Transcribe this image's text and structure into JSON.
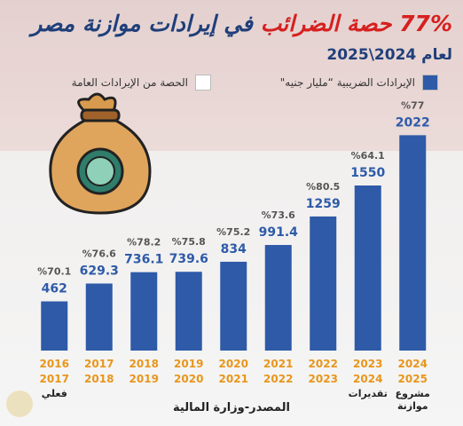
{
  "chart_data": {
    "type": "bar",
    "title": {
      "highlight": "77% حصة الضرائب",
      "rest": "في إيرادات موازنة مصر"
    },
    "subtitle": "لعام 2024\\2025",
    "source": "المصدر-وزارة المالية",
    "categories": [
      "2016\n2017",
      "2017\n2018",
      "2018\n2019",
      "2019\n2020",
      "2020\n2021",
      "2021\n2022",
      "2022\n2023",
      "2023\n2024",
      "2024\n2025"
    ],
    "series": [
      {
        "name": "الإيرادات الضريبية “مليار جنيه\"",
        "color": "#2e5aa8",
        "values": [
          462,
          629.3,
          736.1,
          739.6,
          834,
          991.4,
          1259,
          1550,
          2022
        ]
      },
      {
        "name": "الحصة من الإيرادات العامة",
        "color": "#ffffff",
        "values": [
          70.1,
          76.6,
          78.2,
          75.8,
          75.2,
          73.6,
          80.5,
          64.1,
          77
        ],
        "value_labels": [
          "%70.1",
          "%76.6",
          "%78.2",
          "%75.8",
          "%75.2",
          "%73.6",
          "%80.5",
          "%64.1",
          "%77"
        ]
      }
    ],
    "annotations": [
      {
        "category": "2016\n2017",
        "text": "فعلي"
      },
      {
        "category": "2023\n2024",
        "text": "تقديرات"
      },
      {
        "category": "2024\n2025",
        "text": "مشروع\nموازنة"
      }
    ],
    "ylim": [
      0,
      2200
    ]
  }
}
